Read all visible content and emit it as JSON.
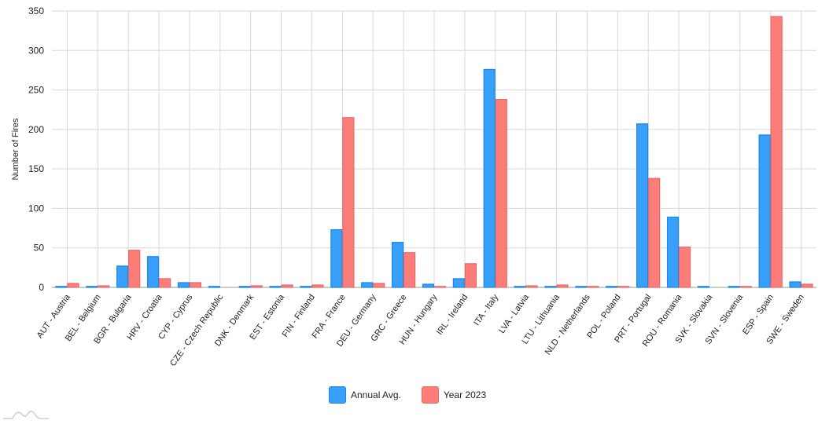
{
  "chart_data": {
    "type": "bar",
    "title": "",
    "xlabel": "",
    "ylabel": "Number of Fires",
    "ylim": [
      0,
      350
    ],
    "yticks": [
      0,
      50,
      100,
      150,
      200,
      250,
      300,
      350
    ],
    "grid": true,
    "legend_position": "bottom",
    "categories": [
      "AUT - Austria",
      "BEL - Belgium",
      "BGR - Bulgaria",
      "HRV - Croatia",
      "CYP - Cyprus",
      "CZE - Czech Republic",
      "DNK - Denmark",
      "EST - Estonia",
      "FIN - Finland",
      "FRA - France",
      "DEU - Germany",
      "GRC - Greece",
      "HUN - Hungary",
      "IRL - Ireland",
      "ITA - Italy",
      "LVA - Latvia",
      "LTU - Lithuania",
      "NLD - Netherlands",
      "POL - Poland",
      "PRT - Portugal",
      "ROU - Romania",
      "SVK - Slovakia",
      "SVN - Slovenia",
      "ESP - Spain",
      "SWE - Sweden"
    ],
    "series": [
      {
        "name": "Annual Avg.",
        "color": "#38a0fa",
        "border": "#1a86e6",
        "values": [
          1,
          1,
          27,
          39,
          6,
          0.5,
          1,
          0.5,
          1,
          73,
          6,
          57,
          4,
          11,
          276,
          1,
          0.5,
          1,
          1,
          207,
          89,
          0.5,
          1,
          193,
          7
        ]
      },
      {
        "name": "Year 2023",
        "color": "#ff7d79",
        "border": "#e66a66",
        "values": [
          5,
          2,
          47,
          11,
          6,
          0,
          2,
          3,
          3,
          215,
          5,
          44,
          1,
          30,
          238,
          2,
          3,
          1,
          1,
          138,
          51,
          0,
          1,
          343,
          4
        ]
      }
    ]
  },
  "legend": {
    "items": [
      {
        "label": "Annual Avg.",
        "color": "#38a0fa",
        "border": "#1a86e6"
      },
      {
        "label": "Year 2023",
        "color": "#ff7d79",
        "border": "#e66a66"
      }
    ]
  },
  "logo": {
    "icon": "amcharts-logo-icon"
  }
}
